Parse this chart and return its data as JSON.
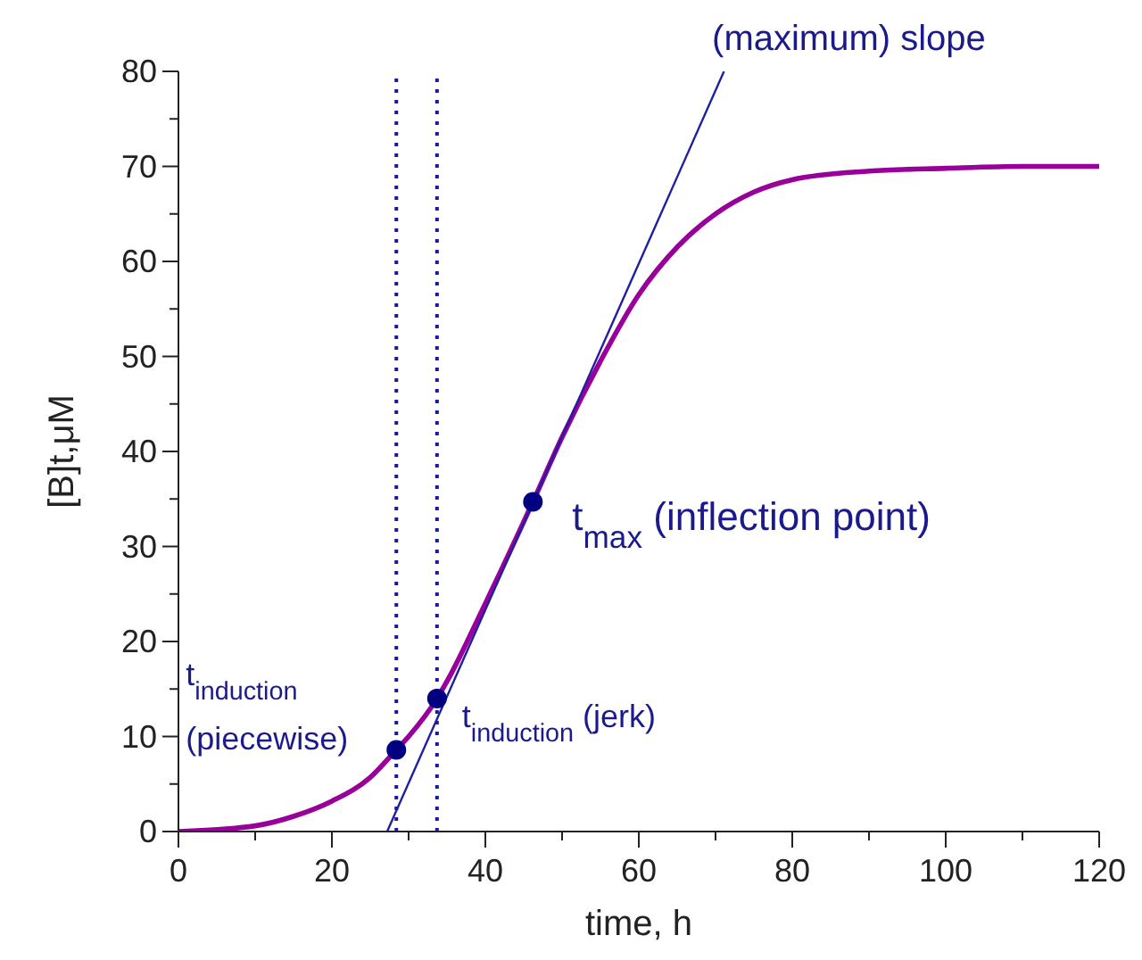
{
  "chart_data": {
    "type": "line",
    "xlabel": "time, h",
    "ylabel": "[B]t,μM",
    "xlim": [
      0,
      120
    ],
    "xticks": [
      0,
      {
        "value": 10,
        "label": null
      },
      20,
      {
        "value": 30,
        "label": null
      },
      40,
      {
        "value": 50,
        "label": null
      },
      60,
      {
        "value": 70,
        "label": null
      },
      80,
      {
        "value": 90,
        "label": null
      },
      100,
      {
        "value": 110,
        "label": null
      },
      120
    ],
    "ylim": [
      0,
      80
    ],
    "yticks": [
      0,
      {
        "value": 5,
        "label": null
      },
      10,
      {
        "value": 15,
        "label": null
      },
      20,
      {
        "value": 25,
        "label": null
      },
      30,
      {
        "value": 35,
        "label": null
      },
      40,
      {
        "value": 45,
        "label": null
      },
      50,
      {
        "value": 55,
        "label": null
      },
      60,
      {
        "value": 65,
        "label": null
      },
      70,
      {
        "value": 75,
        "label": null
      },
      80
    ],
    "series": [
      {
        "type": "line",
        "color": "#990099",
        "x": [
          0,
          10,
          15,
          20,
          25,
          28.4,
          30,
          33.7,
          35,
          40,
          46.2,
          50,
          55,
          60,
          65,
          70,
          75,
          80,
          90,
          100,
          110,
          120
        ],
        "values": [
          0,
          0.6,
          1.6,
          3.2,
          5.7,
          8.6,
          10,
          14,
          15.8,
          24,
          34.7,
          41.5,
          49.5,
          56.5,
          61.5,
          65,
          67.3,
          68.6,
          69.5,
          69.8,
          70,
          70
        ]
      },
      {
        "type": "line",
        "color": "#1f1fa0",
        "x": [
          27.2,
          71.1
        ],
        "values": [
          0,
          80
        ]
      },
      {
        "type": "scatter",
        "color": "#000080",
        "marker": "circle",
        "x": [
          28.4,
          33.7,
          46.2
        ],
        "values": [
          8.6,
          14,
          34.7
        ]
      }
    ],
    "ref_lines": [
      {
        "axis": "x",
        "value": 28.4,
        "color": "#1a1aa0",
        "line_style": "dotted"
      },
      {
        "axis": "x",
        "value": 33.7,
        "color": "#1a1aa0",
        "line_style": "dotted"
      }
    ],
    "annotations": [
      {
        "text": "(maximum) slope",
        "x": 71.1,
        "y": 80
      },
      {
        "text": "t$_{max}$ (inflection point)",
        "x": 46.2,
        "y": 34.7
      },
      {
        "text": "t$_{induction}$ (jerk)",
        "x": 33.7,
        "y": 14
      },
      {
        "text": "t$_{induction}$\n(piecewise)",
        "x": 28.4,
        "y": 8.6
      }
    ]
  }
}
